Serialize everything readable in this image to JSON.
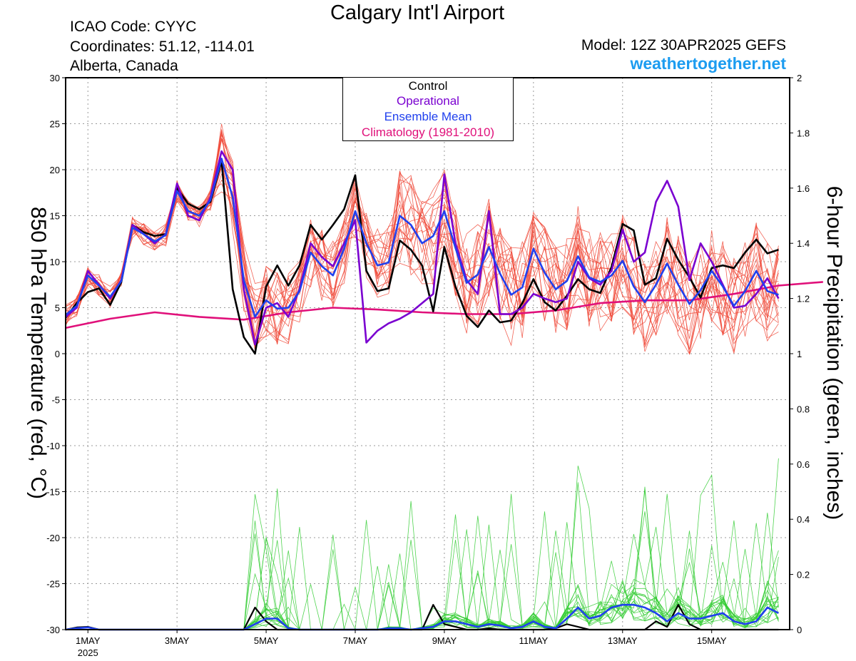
{
  "header": {
    "title": "Calgary Int'l Airport",
    "icao": "ICAO Code: CYYC",
    "coords": "Coordinates: 51.12, -114.01",
    "region": "Alberta, Canada",
    "model": "Model: 12Z 30APR2025 GEFS",
    "site": "weathertogether.net"
  },
  "colors": {
    "control": "#000000",
    "operational": "#7a00d0",
    "ensemble_mean": "#2040ee",
    "climatology": "#e0107a",
    "members_temp": "#f04a3a",
    "members_precip": "#33cc33",
    "site": "#1c9cf0"
  },
  "chart_data": {
    "type": "line",
    "title": "Calgary Int'l Airport",
    "ylabel_left": "850 hPa Temperature (red, °C)",
    "ylabel_right": "6-hour Precipitation (green, inches)",
    "ylim_left": [
      -30,
      30
    ],
    "yticks_left": [
      30,
      25,
      20,
      15,
      10,
      5,
      0,
      -5,
      -10,
      -15,
      -20,
      -25,
      -30
    ],
    "ylim_right": [
      0,
      2
    ],
    "yticks_right": [
      "2",
      "1.8",
      "1.6",
      "1.4",
      "1.2",
      "1",
      "0.8",
      "0.6",
      "0.4",
      "0.2",
      "0"
    ],
    "x_unit": "days from 1MAY 00Z",
    "xlim": [
      -0.5,
      15.75
    ],
    "xticks": [
      {
        "x": 0,
        "label": "1MAY",
        "sub": "2025"
      },
      {
        "x": 2,
        "label": "3MAY",
        "sub": ""
      },
      {
        "x": 4,
        "label": "5MAY",
        "sub": ""
      },
      {
        "x": 6,
        "label": "7MAY",
        "sub": ""
      },
      {
        "x": 8,
        "label": "9MAY",
        "sub": ""
      },
      {
        "x": 10,
        "label": "11MAY",
        "sub": ""
      },
      {
        "x": 12,
        "label": "13MAY",
        "sub": ""
      },
      {
        "x": 14,
        "label": "15MAY",
        "sub": ""
      }
    ],
    "grid": true,
    "legend": {
      "position": "top-center",
      "entries": [
        "Control",
        "Operational",
        "Ensemble Mean",
        "Climatology (1981-2010)"
      ]
    },
    "x_step": 0.25,
    "x_start": -0.5,
    "series": [
      {
        "name": "Control",
        "axis": "left",
        "values": [
          3.9,
          5.5,
          6.7,
          7.1,
          5.3,
          7.8,
          14.0,
          13.2,
          12.8,
          13.0,
          18.0,
          16.3,
          15.7,
          16.5,
          21.0,
          7.0,
          1.8,
          0.0,
          7.3,
          9.6,
          7.4,
          9.6,
          14.0,
          12.4,
          14.0,
          15.7,
          19.4,
          9.0,
          6.8,
          7.1,
          12.3,
          11.3,
          9.6,
          4.6,
          11.6,
          7.3,
          4.1,
          2.9,
          4.7,
          3.4,
          3.6,
          5.5,
          8.1,
          5.6,
          4.7,
          6.3,
          8.1,
          7.0,
          6.6,
          9.4,
          14.1,
          13.4,
          7.5,
          8.2,
          12.5,
          10.2,
          8.3,
          6.1,
          9.3,
          9.6,
          9.3,
          11.0,
          12.4,
          10.9,
          11.3
        ]
      },
      {
        "name": "Operational",
        "axis": "left",
        "values": [
          4.0,
          5.0,
          9.0,
          7.5,
          6.0,
          8.0,
          14.0,
          13.0,
          12.0,
          13.0,
          18.5,
          15.0,
          14.5,
          17.0,
          22.0,
          20.0,
          7.0,
          1.0,
          5.0,
          5.5,
          4.0,
          7.0,
          12.0,
          10.5,
          9.5,
          12.0,
          14.5,
          1.2,
          2.5,
          3.3,
          3.8,
          4.5,
          5.5,
          6.5,
          19.5,
          12.0,
          8.0,
          6.5,
          15.5,
          4.3,
          4.3,
          5.0,
          6.5,
          6.0,
          5.6,
          6.0,
          10.0,
          8.2,
          7.5,
          9.0,
          13.5,
          10.0,
          11.0,
          16.5,
          18.8,
          16.0,
          8.0,
          12.0,
          10.0,
          7.5,
          5.0,
          5.2,
          6.5,
          8.2,
          6.0
        ]
      },
      {
        "name": "Ensemble Mean",
        "axis": "left",
        "values": [
          4.2,
          5.2,
          8.5,
          7.4,
          6.2,
          7.9,
          13.7,
          13.0,
          12.2,
          12.9,
          17.7,
          15.5,
          15.0,
          16.7,
          21.2,
          17.0,
          8.0,
          4.0,
          5.8,
          4.9,
          5.0,
          6.8,
          11.0,
          9.5,
          8.5,
          11.4,
          15.5,
          12.0,
          9.6,
          9.9,
          15.0,
          14.0,
          12.0,
          12.8,
          15.5,
          11.5,
          7.7,
          8.6,
          11.6,
          8.7,
          6.4,
          7.2,
          11.4,
          8.8,
          7.0,
          7.9,
          10.6,
          8.3,
          7.8,
          8.5,
          10.1,
          7.3,
          5.6,
          7.5,
          9.8,
          7.5,
          5.4,
          6.9,
          9.0,
          7.3,
          5.2,
          6.8,
          9.0,
          6.8,
          6.4
        ]
      },
      {
        "name": "Climatology (1981-2010)",
        "axis": "left",
        "values": [
          2.8,
          3.8,
          4.5,
          4.0,
          3.7,
          4.5,
          5.0,
          4.8,
          4.5,
          4.3,
          4.3,
          4.7,
          5.5,
          5.8,
          5.8,
          6.5,
          7.4,
          7.8
        ]
      },
      {
        "name": "Control",
        "axis": "right",
        "values": [
          0,
          0.008,
          0.01,
          0,
          0,
          0,
          0,
          0,
          0,
          0,
          0,
          0,
          0,
          0,
          0,
          0,
          0,
          0.08,
          0.03,
          0,
          0,
          0,
          0,
          0,
          0,
          0,
          0,
          0,
          0,
          0,
          0,
          0,
          0,
          0.09,
          0.02,
          0.01,
          0,
          0,
          0.005,
          0,
          0,
          0,
          0,
          0,
          0.005,
          0.02,
          0.01,
          0,
          0,
          0,
          0,
          0,
          0,
          0.03,
          0.01,
          0.09,
          0.02,
          0,
          0,
          0,
          0,
          0,
          0,
          0,
          0
        ]
      },
      {
        "name": "Ensemble Mean",
        "axis": "right",
        "values": [
          0,
          0.005,
          0.008,
          0,
          0,
          0,
          0,
          0,
          0,
          0,
          0,
          0,
          0,
          0,
          0,
          0,
          0,
          0.02,
          0.04,
          0.04,
          0.005,
          0,
          0,
          0,
          0,
          0,
          0,
          0,
          0,
          0.005,
          0.005,
          0,
          0.005,
          0.01,
          0.03,
          0.03,
          0.02,
          0.01,
          0.02,
          0.015,
          0.005,
          0.01,
          0.03,
          0.01,
          0.005,
          0.04,
          0.08,
          0.04,
          0.05,
          0.08,
          0.09,
          0.09,
          0.08,
          0.06,
          0.03,
          0.06,
          0.04,
          0.04,
          0.05,
          0.06,
          0.03,
          0.02,
          0.03,
          0.08,
          0.06
        ]
      }
    ],
    "members_note_temp_count": 20,
    "members_note_precip_count": 20
  }
}
